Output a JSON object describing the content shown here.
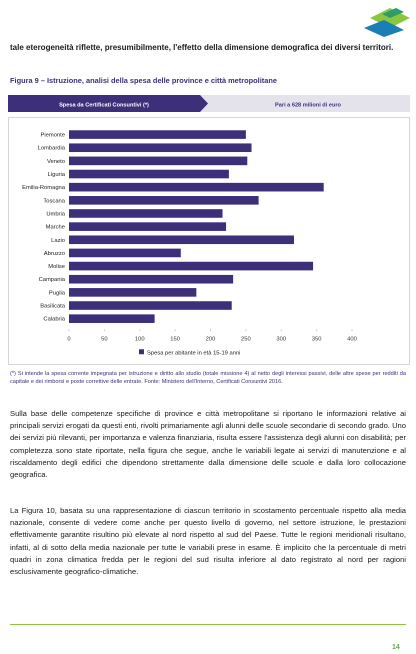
{
  "intro": "tale eterogeneità riflette, presumibilmente, l'effetto della dimensione demografica dei diversi territori.",
  "figure_title": "Figura 9 – Istruzione, analisi della spesa delle province e città metropolitane",
  "banner": {
    "left": "Spesa da Certificati Consuntivi (*)",
    "right": "Pari a 628 milioni di euro"
  },
  "chart_data": {
    "type": "bar",
    "orientation": "horizontal",
    "categories": [
      "Piemonte",
      "Lombardia",
      "Veneto",
      "Liguria",
      "Emilia-Romagna",
      "Toscana",
      "Umbria",
      "Marche",
      "Lazio",
      "Abruzzo",
      "Molise",
      "Campania",
      "Puglia",
      "Basilicata",
      "Calabria"
    ],
    "series": [
      {
        "name": "Spesa per abitante in età 15-19 anni",
        "color": "#3e2f7b",
        "values": [
          250,
          258,
          252,
          226,
          360,
          268,
          217,
          222,
          318,
          158,
          345,
          232,
          180,
          230,
          121
        ]
      }
    ],
    "xlim": [
      0,
      400
    ],
    "xticks": [
      0,
      50,
      100,
      150,
      200,
      250,
      300,
      350,
      400
    ],
    "grid": false,
    "legend": "bottom"
  },
  "footnote": "(*) Si intende la spesa corrente impegnata per istruzione e diritto allo studio (totale missione 4) al netto degli interessi passivi, delle altre spese per redditi da capitale e dei rimborsi e poste correttive delle entrate.  Fonte: Ministero dell'Interno, Certificati Consuntivi 2016.",
  "paragraphs": [
    "Sulla base delle competenze specifiche di province e città metropolitane si riportano le informazioni relative ai principali servizi erogati da questi enti, rivolti primariamente agli alunni delle scuole secondarie di secondo grado. Uno dei servizi più rilevanti, per importanza e valenza finanziaria, risulta essere l'assistenza degli alunni con disabilità; per completezza sono state riportate, nella figura che segue, anche le variabili legate ai servizi di manutenzione e al riscaldamento degli edifici che dipendono strettamente dalla dimensione delle scuole e dalla loro collocazione geografica.",
    "La Figura 10, basata su una rappresentazione di ciascun territorio in scostamento percentuale rispetto alla media nazionale, consente di vedere come anche per questo livello di governo, nel settore istruzione, le prestazioni effettivamente garantite risultino più elevate al nord rispetto al sud del Paese. Tutte le regioni meridionali risultano, infatti, al di sotto della media nazionale per tutte le variabili prese in esame. È implicito che la percentuale di metri quadri in zona climatica fredda per le regioni del sud risulta inferiore al dato registrato al nord per ragioni esclusivamente geografico-climatiche."
  ],
  "page_number": "14"
}
